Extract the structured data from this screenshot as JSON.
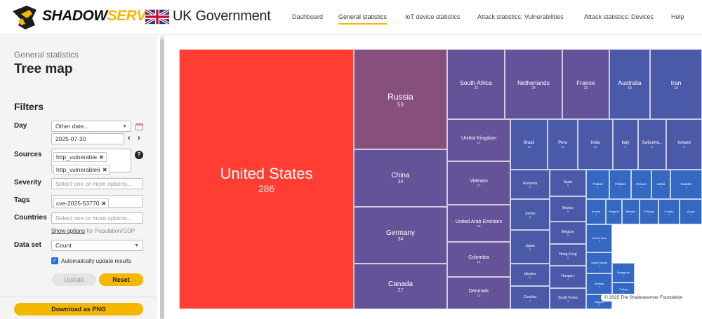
{
  "header": {
    "brand_part1": "SHADOW",
    "brand_part2": "SERVER",
    "gov_text": "UK Government",
    "nav": [
      {
        "label": "Dashboard"
      },
      {
        "label": "General statistics"
      },
      {
        "label": "IoT device statistics"
      },
      {
        "label": "Attack statistics: Vulnerabilities"
      },
      {
        "label": "Attack statistics: Devices"
      },
      {
        "label": "Help"
      }
    ],
    "active_nav": "General statistics"
  },
  "sidebar": {
    "subtitle": "General statistics",
    "title": "Tree map",
    "filters_heading": "Filters",
    "day": {
      "label": "Day",
      "select": "Other date...",
      "date": "2025-07-30",
      "prev_icon": "chevron-left-icon",
      "next_icon": "chevron-right-icon",
      "calendar_icon": "calendar-icon"
    },
    "sources": {
      "label": "Sources",
      "chips": [
        "http_vulnerable",
        "http_vulnerable6"
      ]
    },
    "severity": {
      "label": "Severity",
      "placeholder": "Select one or more options..."
    },
    "tags": {
      "label": "Tags",
      "chips": [
        "cve-2025-53770"
      ]
    },
    "countries": {
      "label": "Countries",
      "placeholder": "Select one or more options...",
      "show_options": "Show options",
      "show_suffix": "for Population/GDP"
    },
    "dataset": {
      "label": "Data set",
      "value": "Count"
    },
    "auto_update": {
      "label": "Automatically update results",
      "checked": true
    },
    "update_button": "Update",
    "reset_button": "Reset",
    "download_button": "Download as PNG"
  },
  "chart_data": {
    "type": "treemap",
    "cells": [
      {
        "name": "United States",
        "value": "286"
      },
      {
        "name": "Russia",
        "value": "59"
      },
      {
        "name": "China",
        "value": "34"
      },
      {
        "name": "Germany",
        "value": "34"
      },
      {
        "name": "Canada",
        "value": "27"
      },
      {
        "name": "South Africa",
        "value": "23"
      },
      {
        "name": "Netherlands",
        "value": "24"
      },
      {
        "name": "France",
        "value": "22"
      },
      {
        "name": "Australia",
        "value": "18"
      },
      {
        "name": "Iran",
        "value": "19"
      },
      {
        "name": "United Kingdom",
        "value": "17"
      },
      {
        "name": "Brazil",
        "value": "12"
      },
      {
        "name": "Peru",
        "value": "11"
      },
      {
        "name": "India",
        "value": "14"
      },
      {
        "name": "Italy",
        "value": "8"
      },
      {
        "name": "Switzerla...",
        "value": "6"
      },
      {
        "name": "Ireland",
        "value": "8"
      },
      {
        "name": "Vietnam",
        "value": "17"
      },
      {
        "name": "Romania",
        "value": "6"
      },
      {
        "name": "Spain",
        "value": "5"
      },
      {
        "name": "Poland",
        "value": "4"
      },
      {
        "name": "Finland",
        "value": "4"
      },
      {
        "name": "Greece",
        "value": "4"
      },
      {
        "name": "Latvia",
        "value": "4"
      },
      {
        "name": "Sweden",
        "value": "4"
      },
      {
        "name": "United Arab Emirates",
        "value": "15"
      },
      {
        "name": "Jordan",
        "value": "5"
      },
      {
        "name": "Mexico",
        "value": "5"
      },
      {
        "name": "Austria",
        "value": "3"
      },
      {
        "name": "Bulgaria",
        "value": "3"
      },
      {
        "name": "Bahrain",
        "value": "3"
      },
      {
        "name": "Portugal",
        "value": "3"
      },
      {
        "name": "Croatia",
        "value": "3"
      },
      {
        "name": "Kenya",
        "value": "3"
      },
      {
        "name": "Belgium",
        "value": "5"
      },
      {
        "name": "Japan",
        "value": "5"
      },
      {
        "name": "Puerto Rico",
        "value": "3"
      },
      {
        "name": "Colombia",
        "value": "14"
      },
      {
        "name": "Hong Kong",
        "value": "5"
      },
      {
        "name": "Saudi Arabia",
        "value": "3"
      },
      {
        "name": "Ukraine",
        "value": "5"
      },
      {
        "name": "Zambia",
        "value": "3"
      },
      {
        "name": "Hungary",
        "value": "4"
      },
      {
        "name": "Singapore",
        "value": "2"
      },
      {
        "name": "Denmark",
        "value": "12"
      },
      {
        "name": "Czechia",
        "value": "4"
      },
      {
        "name": "South Korea",
        "value": "4"
      },
      {
        "name": "Angola",
        "value": "2"
      },
      {
        "name": "Turkey",
        "value": "2"
      }
    ],
    "colors": {
      "max": "#ff3d33",
      "high": "#87507c",
      "mid": "#63549a",
      "low": "#4a5aa8",
      "min": "#3468c2"
    }
  },
  "copyright": "© 2025 The Shadowserver Foundation"
}
